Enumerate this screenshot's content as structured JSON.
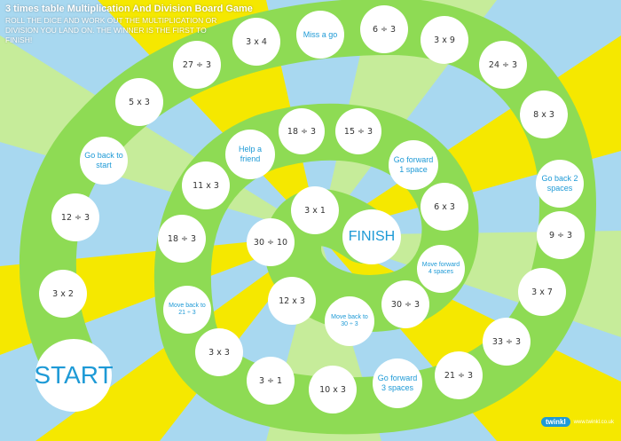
{
  "title": "3 times table Multiplication And Division Board Game",
  "instructions": "Roll the dice and work out the multiplication or division you land on. The winner is the first to finish!",
  "colors": {
    "sky": "#a8d8f0",
    "yellow": "#f5e800",
    "pale_green": "#c6ec9a",
    "track_green": "#8edb54",
    "space_white": "#ffffff",
    "text_blue": "#1e9ad6"
  },
  "spaces": {
    "start": "START",
    "s01": "3 x 2",
    "s02": "12 ÷ 3",
    "s03": "Go back to start",
    "s04": "5 x 3",
    "s05": "27 ÷ 3",
    "s06": "3 x 4",
    "s07": "Miss a go",
    "s08": "6 ÷ 3",
    "s09": "3 x 9",
    "s10": "24 ÷ 3",
    "s11": "8 x 3",
    "s12": "Go back 2 spaces",
    "s13": "9 ÷ 3",
    "s14": "3 x 7",
    "s15": "33 ÷ 3",
    "s16": "21 ÷ 3",
    "s17": "Go forward 3 spaces",
    "s18": "10 x 3",
    "s19": "3 ÷ 1",
    "s20": "3 x 3",
    "s21": "Move back to 21 ÷ 3",
    "s22": "18 ÷ 3",
    "s23": "11 x 3",
    "s24": "Help a friend",
    "s25": "18 ÷ 3",
    "s26": "15 ÷ 3",
    "s27": "Go forward 1 space",
    "s28": "6 x 3",
    "s29": "Move forward 4 spaces",
    "s30": "30 ÷ 3",
    "s31": "Move back to 30 ÷ 3",
    "s32": "12 x 3",
    "s33": "30 ÷ 10",
    "s34": "3 x 1",
    "finish": "FINISH"
  },
  "logo": {
    "brand": "twinkl",
    "url": "www.twinkl.co.uk"
  }
}
